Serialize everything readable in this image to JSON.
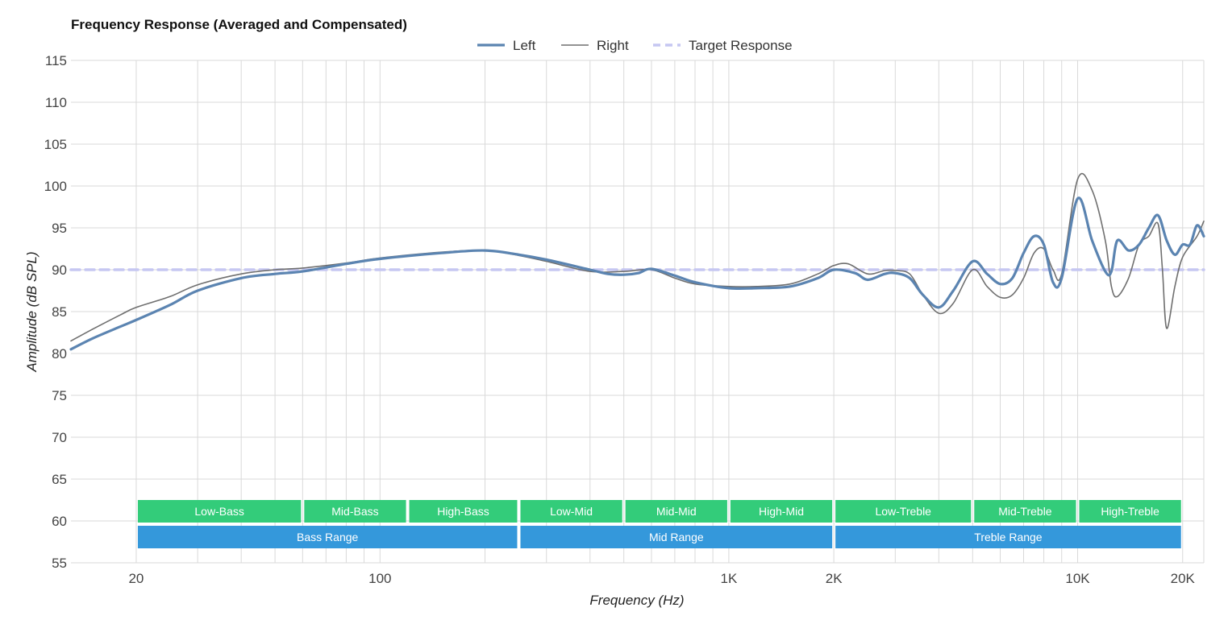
{
  "chart_data": {
    "type": "line",
    "title": "Frequency Response (Averaged and Compensated)",
    "xlabel": "Frequency (Hz)",
    "ylabel": "Amplitude (dB SPL)",
    "x_scale": "log",
    "xlim": [
      13,
      23000
    ],
    "ylim": [
      55,
      115
    ],
    "y_ticks": [
      55,
      60,
      65,
      70,
      75,
      80,
      85,
      90,
      95,
      100,
      105,
      110,
      115
    ],
    "x_ticks": [
      {
        "value": 20,
        "label": "20"
      },
      {
        "value": 100,
        "label": "100"
      },
      {
        "value": 1000,
        "label": "1K"
      },
      {
        "value": 2000,
        "label": "2K"
      },
      {
        "value": 10000,
        "label": "10K"
      },
      {
        "value": 20000,
        "label": "20K"
      }
    ],
    "x_gridlines": [
      20,
      30,
      40,
      50,
      60,
      70,
      80,
      90,
      100,
      200,
      300,
      400,
      500,
      600,
      700,
      800,
      900,
      1000,
      2000,
      3000,
      4000,
      5000,
      6000,
      7000,
      8000,
      9000,
      10000,
      20000
    ],
    "grid": true,
    "legend_position": "top-center",
    "series": [
      {
        "name": "Left",
        "color": "#5b84b1",
        "style": "solid-thick",
        "points": [
          [
            13,
            80.5
          ],
          [
            15,
            81.8
          ],
          [
            18,
            83.2
          ],
          [
            20,
            84.0
          ],
          [
            25,
            85.8
          ],
          [
            30,
            87.5
          ],
          [
            40,
            89.0
          ],
          [
            50,
            89.5
          ],
          [
            60,
            89.8
          ],
          [
            80,
            90.7
          ],
          [
            100,
            91.3
          ],
          [
            150,
            92.0
          ],
          [
            200,
            92.3
          ],
          [
            250,
            91.8
          ],
          [
            300,
            91.2
          ],
          [
            400,
            90.0
          ],
          [
            450,
            89.5
          ],
          [
            500,
            89.4
          ],
          [
            550,
            89.6
          ],
          [
            600,
            90.1
          ],
          [
            700,
            89.3
          ],
          [
            800,
            88.5
          ],
          [
            1000,
            87.8
          ],
          [
            1200,
            87.8
          ],
          [
            1500,
            88.0
          ],
          [
            1800,
            89.0
          ],
          [
            2000,
            90.0
          ],
          [
            2300,
            89.6
          ],
          [
            2500,
            88.8
          ],
          [
            2800,
            89.5
          ],
          [
            3000,
            89.6
          ],
          [
            3300,
            89.0
          ],
          [
            3600,
            87.0
          ],
          [
            4000,
            85.5
          ],
          [
            4400,
            87.5
          ],
          [
            5000,
            91.0
          ],
          [
            5500,
            89.5
          ],
          [
            6000,
            88.3
          ],
          [
            6500,
            89.0
          ],
          [
            7000,
            92.0
          ],
          [
            7500,
            94.0
          ],
          [
            8000,
            93.0
          ],
          [
            8500,
            88.5
          ],
          [
            9000,
            89.0
          ],
          [
            10000,
            98.5
          ],
          [
            11000,
            93.5
          ],
          [
            12000,
            89.8
          ],
          [
            12500,
            89.8
          ],
          [
            13000,
            93.5
          ],
          [
            14000,
            92.3
          ],
          [
            15000,
            93.0
          ],
          [
            16000,
            95.0
          ],
          [
            17000,
            96.5
          ],
          [
            18000,
            93.5
          ],
          [
            19000,
            91.8
          ],
          [
            20000,
            93.0
          ],
          [
            21000,
            93.0
          ],
          [
            22000,
            95.3
          ],
          [
            23000,
            94.0
          ]
        ]
      },
      {
        "name": "Right",
        "color": "#6f6f6f",
        "style": "solid-thin",
        "points": [
          [
            13,
            81.5
          ],
          [
            15,
            82.9
          ],
          [
            18,
            84.6
          ],
          [
            20,
            85.5
          ],
          [
            25,
            86.8
          ],
          [
            30,
            88.2
          ],
          [
            40,
            89.5
          ],
          [
            50,
            90.0
          ],
          [
            60,
            90.2
          ],
          [
            80,
            90.8
          ],
          [
            100,
            91.4
          ],
          [
            150,
            92.1
          ],
          [
            200,
            92.3
          ],
          [
            250,
            91.7
          ],
          [
            300,
            91.0
          ],
          [
            400,
            89.8
          ],
          [
            500,
            89.8
          ],
          [
            600,
            90.0
          ],
          [
            700,
            89.0
          ],
          [
            800,
            88.3
          ],
          [
            1000,
            88.0
          ],
          [
            1200,
            88.0
          ],
          [
            1500,
            88.3
          ],
          [
            1800,
            89.5
          ],
          [
            2000,
            90.5
          ],
          [
            2200,
            90.7
          ],
          [
            2500,
            89.5
          ],
          [
            2800,
            89.9
          ],
          [
            3000,
            89.9
          ],
          [
            3300,
            89.5
          ],
          [
            3600,
            87.0
          ],
          [
            4000,
            84.8
          ],
          [
            4400,
            86.0
          ],
          [
            5000,
            90.0
          ],
          [
            5500,
            88.0
          ],
          [
            6000,
            86.7
          ],
          [
            6500,
            87.0
          ],
          [
            7000,
            89.0
          ],
          [
            7500,
            92.0
          ],
          [
            8000,
            92.5
          ],
          [
            8500,
            90.0
          ],
          [
            9000,
            89.5
          ],
          [
            10000,
            100.8
          ],
          [
            11000,
            99.5
          ],
          [
            12000,
            93.5
          ],
          [
            12500,
            88.0
          ],
          [
            13000,
            86.8
          ],
          [
            14000,
            89.0
          ],
          [
            15000,
            93.0
          ],
          [
            16000,
            94.0
          ],
          [
            17000,
            95.5
          ],
          [
            17500,
            90.0
          ],
          [
            18000,
            83.0
          ],
          [
            19000,
            88.0
          ],
          [
            20000,
            91.5
          ],
          [
            22000,
            94.0
          ],
          [
            23000,
            95.8
          ]
        ]
      },
      {
        "name": "Target Response",
        "color": "#c6c7f2",
        "style": "dashed",
        "points": [
          [
            13,
            90
          ],
          [
            23000,
            90
          ]
        ]
      }
    ],
    "bands": {
      "color": "#33cc7a",
      "items": [
        {
          "label": "Low-Bass",
          "from": 20,
          "to": 60
        },
        {
          "label": "Mid-Bass",
          "from": 60,
          "to": 120
        },
        {
          "label": "High-Bass",
          "from": 120,
          "to": 250
        },
        {
          "label": "Low-Mid",
          "from": 250,
          "to": 500
        },
        {
          "label": "Mid-Mid",
          "from": 500,
          "to": 1000
        },
        {
          "label": "High-Mid",
          "from": 1000,
          "to": 2000
        },
        {
          "label": "Low-Treble",
          "from": 2000,
          "to": 5000
        },
        {
          "label": "Mid-Treble",
          "from": 5000,
          "to": 10000
        },
        {
          "label": "High-Treble",
          "from": 10000,
          "to": 20000
        }
      ]
    },
    "ranges": {
      "color": "#3498db",
      "items": [
        {
          "label": "Bass Range",
          "from": 20,
          "to": 250
        },
        {
          "label": "Mid Range",
          "from": 250,
          "to": 2000
        },
        {
          "label": "Treble Range",
          "from": 2000,
          "to": 20000
        }
      ]
    }
  }
}
